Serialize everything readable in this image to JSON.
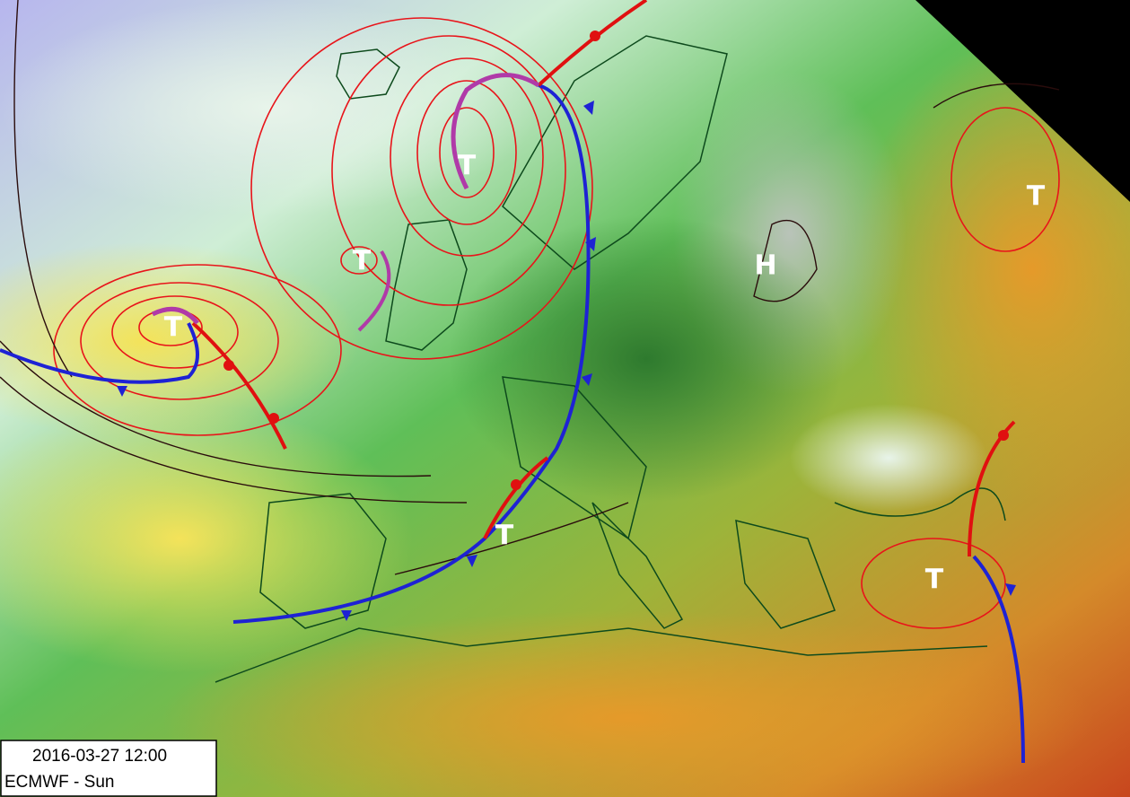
{
  "map": {
    "pressure_centers": [
      {
        "label": "T"
      },
      {
        "label": "T"
      },
      {
        "label": "T"
      },
      {
        "label": "T"
      },
      {
        "label": "H"
      },
      {
        "label": "T"
      },
      {
        "label": "T"
      }
    ],
    "legend": {
      "datetime": "2016-03-27 12:00",
      "model": "ECMWF - Sun"
    }
  }
}
